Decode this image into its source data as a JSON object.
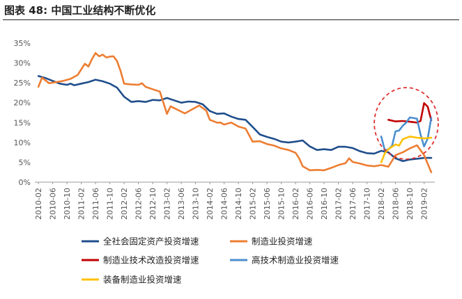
{
  "header": {
    "title": "图表 48:  中国工业结构不断优化"
  },
  "chart_data": {
    "type": "line",
    "title": "",
    "xlabel": "",
    "ylabel": "",
    "ylim": [
      0,
      0.35
    ],
    "grid": false,
    "legend_position": "bottom",
    "y_ticks": [
      "0%",
      "5%",
      "10%",
      "15%",
      "20%",
      "25%",
      "30%",
      "35%"
    ],
    "x_tick_labels": [
      "2010-02",
      "2010-06",
      "2010-10",
      "2011-02",
      "2011-06",
      "2011-10",
      "2012-02",
      "2012-06",
      "2012-10",
      "2013-02",
      "2013-06",
      "2013-10",
      "2014-02",
      "2014-06",
      "2014-10",
      "2015-02",
      "2015-06",
      "2015-10",
      "2016-02",
      "2016-06",
      "2016-10",
      "2017-02",
      "2017-06",
      "2017-10",
      "2018-02",
      "2018-06",
      "2018-10",
      "2019-02"
    ],
    "colors": {
      "fixed_asset": "#1f4e8c",
      "manufacturing": "#ed7d31",
      "tech_upgrade": "#c00000",
      "high_tech": "#4a8fcf",
      "equipment": "#ffc000",
      "highlight_ellipse": "#e03030"
    },
    "series": [
      {
        "key": "fixed_asset",
        "name": "全社会固定资产投资增速",
        "points": [
          [
            "2010-02",
            0.267
          ],
          [
            "2010-04",
            0.262
          ],
          [
            "2010-06",
            0.255
          ],
          [
            "2010-08",
            0.248
          ],
          [
            "2010-10",
            0.245
          ],
          [
            "2010-11",
            0.248
          ],
          [
            "2010-12",
            0.244
          ],
          [
            "2011-02",
            0.248
          ],
          [
            "2011-04",
            0.252
          ],
          [
            "2011-06",
            0.258
          ],
          [
            "2011-08",
            0.254
          ],
          [
            "2011-10",
            0.248
          ],
          [
            "2011-12",
            0.238
          ],
          [
            "2012-02",
            0.215
          ],
          [
            "2012-04",
            0.202
          ],
          [
            "2012-06",
            0.204
          ],
          [
            "2012-08",
            0.202
          ],
          [
            "2012-10",
            0.207
          ],
          [
            "2012-12",
            0.206
          ],
          [
            "2013-02",
            0.212
          ],
          [
            "2013-04",
            0.206
          ],
          [
            "2013-06",
            0.2
          ],
          [
            "2013-08",
            0.203
          ],
          [
            "2013-10",
            0.202
          ],
          [
            "2013-12",
            0.196
          ],
          [
            "2014-02",
            0.179
          ],
          [
            "2014-04",
            0.172
          ],
          [
            "2014-06",
            0.173
          ],
          [
            "2014-08",
            0.165
          ],
          [
            "2014-10",
            0.159
          ],
          [
            "2014-12",
            0.157
          ],
          [
            "2015-02",
            0.139
          ],
          [
            "2015-04",
            0.12
          ],
          [
            "2015-06",
            0.114
          ],
          [
            "2015-08",
            0.109
          ],
          [
            "2015-10",
            0.102
          ],
          [
            "2015-12",
            0.1
          ],
          [
            "2016-02",
            0.102
          ],
          [
            "2016-04",
            0.105
          ],
          [
            "2016-06",
            0.09
          ],
          [
            "2016-08",
            0.081
          ],
          [
            "2016-10",
            0.083
          ],
          [
            "2016-12",
            0.081
          ],
          [
            "2017-02",
            0.089
          ],
          [
            "2017-04",
            0.089
          ],
          [
            "2017-06",
            0.086
          ],
          [
            "2017-08",
            0.078
          ],
          [
            "2017-10",
            0.073
          ],
          [
            "2017-12",
            0.072
          ],
          [
            "2018-02",
            0.079
          ],
          [
            "2018-04",
            0.075
          ],
          [
            "2018-06",
            0.06
          ],
          [
            "2018-08",
            0.053
          ],
          [
            "2018-10",
            0.057
          ],
          [
            "2018-12",
            0.059
          ],
          [
            "2019-02",
            0.061
          ],
          [
            "2019-04",
            0.061
          ]
        ]
      },
      {
        "key": "manufacturing",
        "name": "制造业投资增速",
        "points": [
          [
            "2010-02",
            0.24
          ],
          [
            "2010-03",
            0.263
          ],
          [
            "2010-05",
            0.249
          ],
          [
            "2010-07",
            0.252
          ],
          [
            "2010-09",
            0.255
          ],
          [
            "2010-11",
            0.26
          ],
          [
            "2011-01",
            0.27
          ],
          [
            "2011-03",
            0.298
          ],
          [
            "2011-04",
            0.291
          ],
          [
            "2011-05",
            0.31
          ],
          [
            "2011-06",
            0.325
          ],
          [
            "2011-07",
            0.317
          ],
          [
            "2011-08",
            0.321
          ],
          [
            "2011-09",
            0.314
          ],
          [
            "2011-10",
            0.316
          ],
          [
            "2011-11",
            0.317
          ],
          [
            "2011-12",
            0.305
          ],
          [
            "2012-01",
            0.28
          ],
          [
            "2012-02",
            0.248
          ],
          [
            "2012-04",
            0.246
          ],
          [
            "2012-06",
            0.245
          ],
          [
            "2012-07",
            0.249
          ],
          [
            "2012-08",
            0.24
          ],
          [
            "2012-10",
            0.234
          ],
          [
            "2012-12",
            0.228
          ],
          [
            "2013-02",
            0.172
          ],
          [
            "2013-03",
            0.191
          ],
          [
            "2013-05",
            0.182
          ],
          [
            "2013-07",
            0.173
          ],
          [
            "2013-09",
            0.183
          ],
          [
            "2013-11",
            0.193
          ],
          [
            "2014-01",
            0.18
          ],
          [
            "2014-02",
            0.157
          ],
          [
            "2014-04",
            0.15
          ],
          [
            "2014-05",
            0.15
          ],
          [
            "2014-06",
            0.145
          ],
          [
            "2014-08",
            0.15
          ],
          [
            "2014-10",
            0.14
          ],
          [
            "2014-12",
            0.135
          ],
          [
            "2015-02",
            0.102
          ],
          [
            "2015-04",
            0.103
          ],
          [
            "2015-06",
            0.096
          ],
          [
            "2015-08",
            0.092
          ],
          [
            "2015-10",
            0.085
          ],
          [
            "2015-12",
            0.081
          ],
          [
            "2016-02",
            0.074
          ],
          [
            "2016-03",
            0.06
          ],
          [
            "2016-04",
            0.04
          ],
          [
            "2016-06",
            0.03
          ],
          [
            "2016-08",
            0.031
          ],
          [
            "2016-10",
            0.03
          ],
          [
            "2016-12",
            0.036
          ],
          [
            "2017-02",
            0.043
          ],
          [
            "2017-04",
            0.048
          ],
          [
            "2017-05",
            0.06
          ],
          [
            "2017-06",
            0.051
          ],
          [
            "2017-08",
            0.047
          ],
          [
            "2017-10",
            0.042
          ],
          [
            "2017-12",
            0.04
          ],
          [
            "2018-02",
            0.043
          ],
          [
            "2018-04",
            0.039
          ],
          [
            "2018-06",
            0.068
          ],
          [
            "2018-08",
            0.075
          ],
          [
            "2018-10",
            0.085
          ],
          [
            "2018-12",
            0.093
          ],
          [
            "2019-02",
            0.068
          ],
          [
            "2019-04",
            0.025
          ]
        ]
      },
      {
        "key": "tech_upgrade",
        "name": "制造业技术改造投资增速",
        "points": [
          [
            "2018-04",
            0.157
          ],
          [
            "2018-06",
            0.153
          ],
          [
            "2018-08",
            0.154
          ],
          [
            "2018-10",
            0.152
          ],
          [
            "2018-12",
            0.15
          ],
          [
            "2019-01",
            0.154
          ],
          [
            "2019-02",
            0.199
          ],
          [
            "2019-03",
            0.19
          ],
          [
            "2019-04",
            0.156
          ]
        ]
      },
      {
        "key": "high_tech",
        "name": "高技术制造业投资增速",
        "points": [
          [
            "2018-02",
            0.115
          ],
          [
            "2018-03",
            0.08
          ],
          [
            "2018-04",
            0.083
          ],
          [
            "2018-05",
            0.091
          ],
          [
            "2018-06",
            0.128
          ],
          [
            "2018-07",
            0.13
          ],
          [
            "2018-08",
            0.142
          ],
          [
            "2018-09",
            0.15
          ],
          [
            "2018-10",
            0.163
          ],
          [
            "2018-12",
            0.16
          ],
          [
            "2019-01",
            0.12
          ],
          [
            "2019-02",
            0.09
          ],
          [
            "2019-03",
            0.11
          ],
          [
            "2019-04",
            0.162
          ]
        ]
      },
      {
        "key": "equipment",
        "name": "装备制造业投资增速",
        "points": [
          [
            "2018-02",
            0.05
          ],
          [
            "2018-03",
            0.073
          ],
          [
            "2018-04",
            0.083
          ],
          [
            "2018-06",
            0.095
          ],
          [
            "2018-07",
            0.092
          ],
          [
            "2018-08",
            0.108
          ],
          [
            "2018-10",
            0.115
          ],
          [
            "2018-12",
            0.112
          ],
          [
            "2019-02",
            0.11
          ],
          [
            "2019-04",
            0.112
          ]
        ]
      }
    ]
  }
}
